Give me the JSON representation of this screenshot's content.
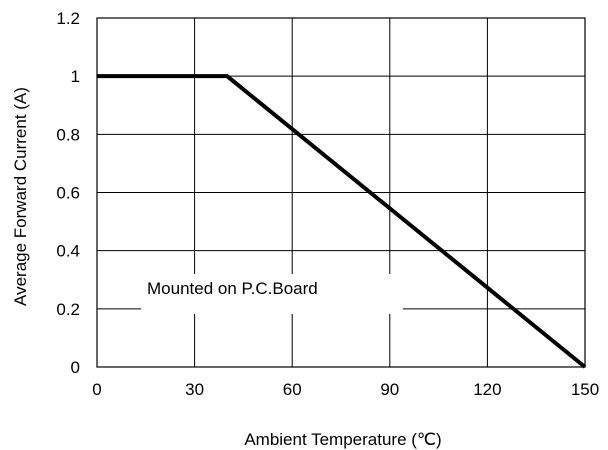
{
  "chart_data": {
    "type": "line",
    "xlabel": "Ambient Temperature (℃)",
    "ylabel": "Average Forward Current (A)",
    "xlim": [
      0,
      150
    ],
    "ylim": [
      0,
      1.2
    ],
    "x_ticks": [
      "0",
      "30",
      "60",
      "90",
      "120",
      "150"
    ],
    "y_ticks": [
      "0",
      "0.2",
      "0.4",
      "0.6",
      "0.8",
      "1",
      "1.2"
    ],
    "grid": true,
    "series": [
      {
        "x": [
          0,
          40,
          150
        ],
        "y": [
          1,
          1,
          0
        ]
      }
    ],
    "annotation": "Mounted on P.C.Board",
    "colors": {
      "line": "#000000",
      "grid": "#000000",
      "background": "#ffffff"
    }
  }
}
